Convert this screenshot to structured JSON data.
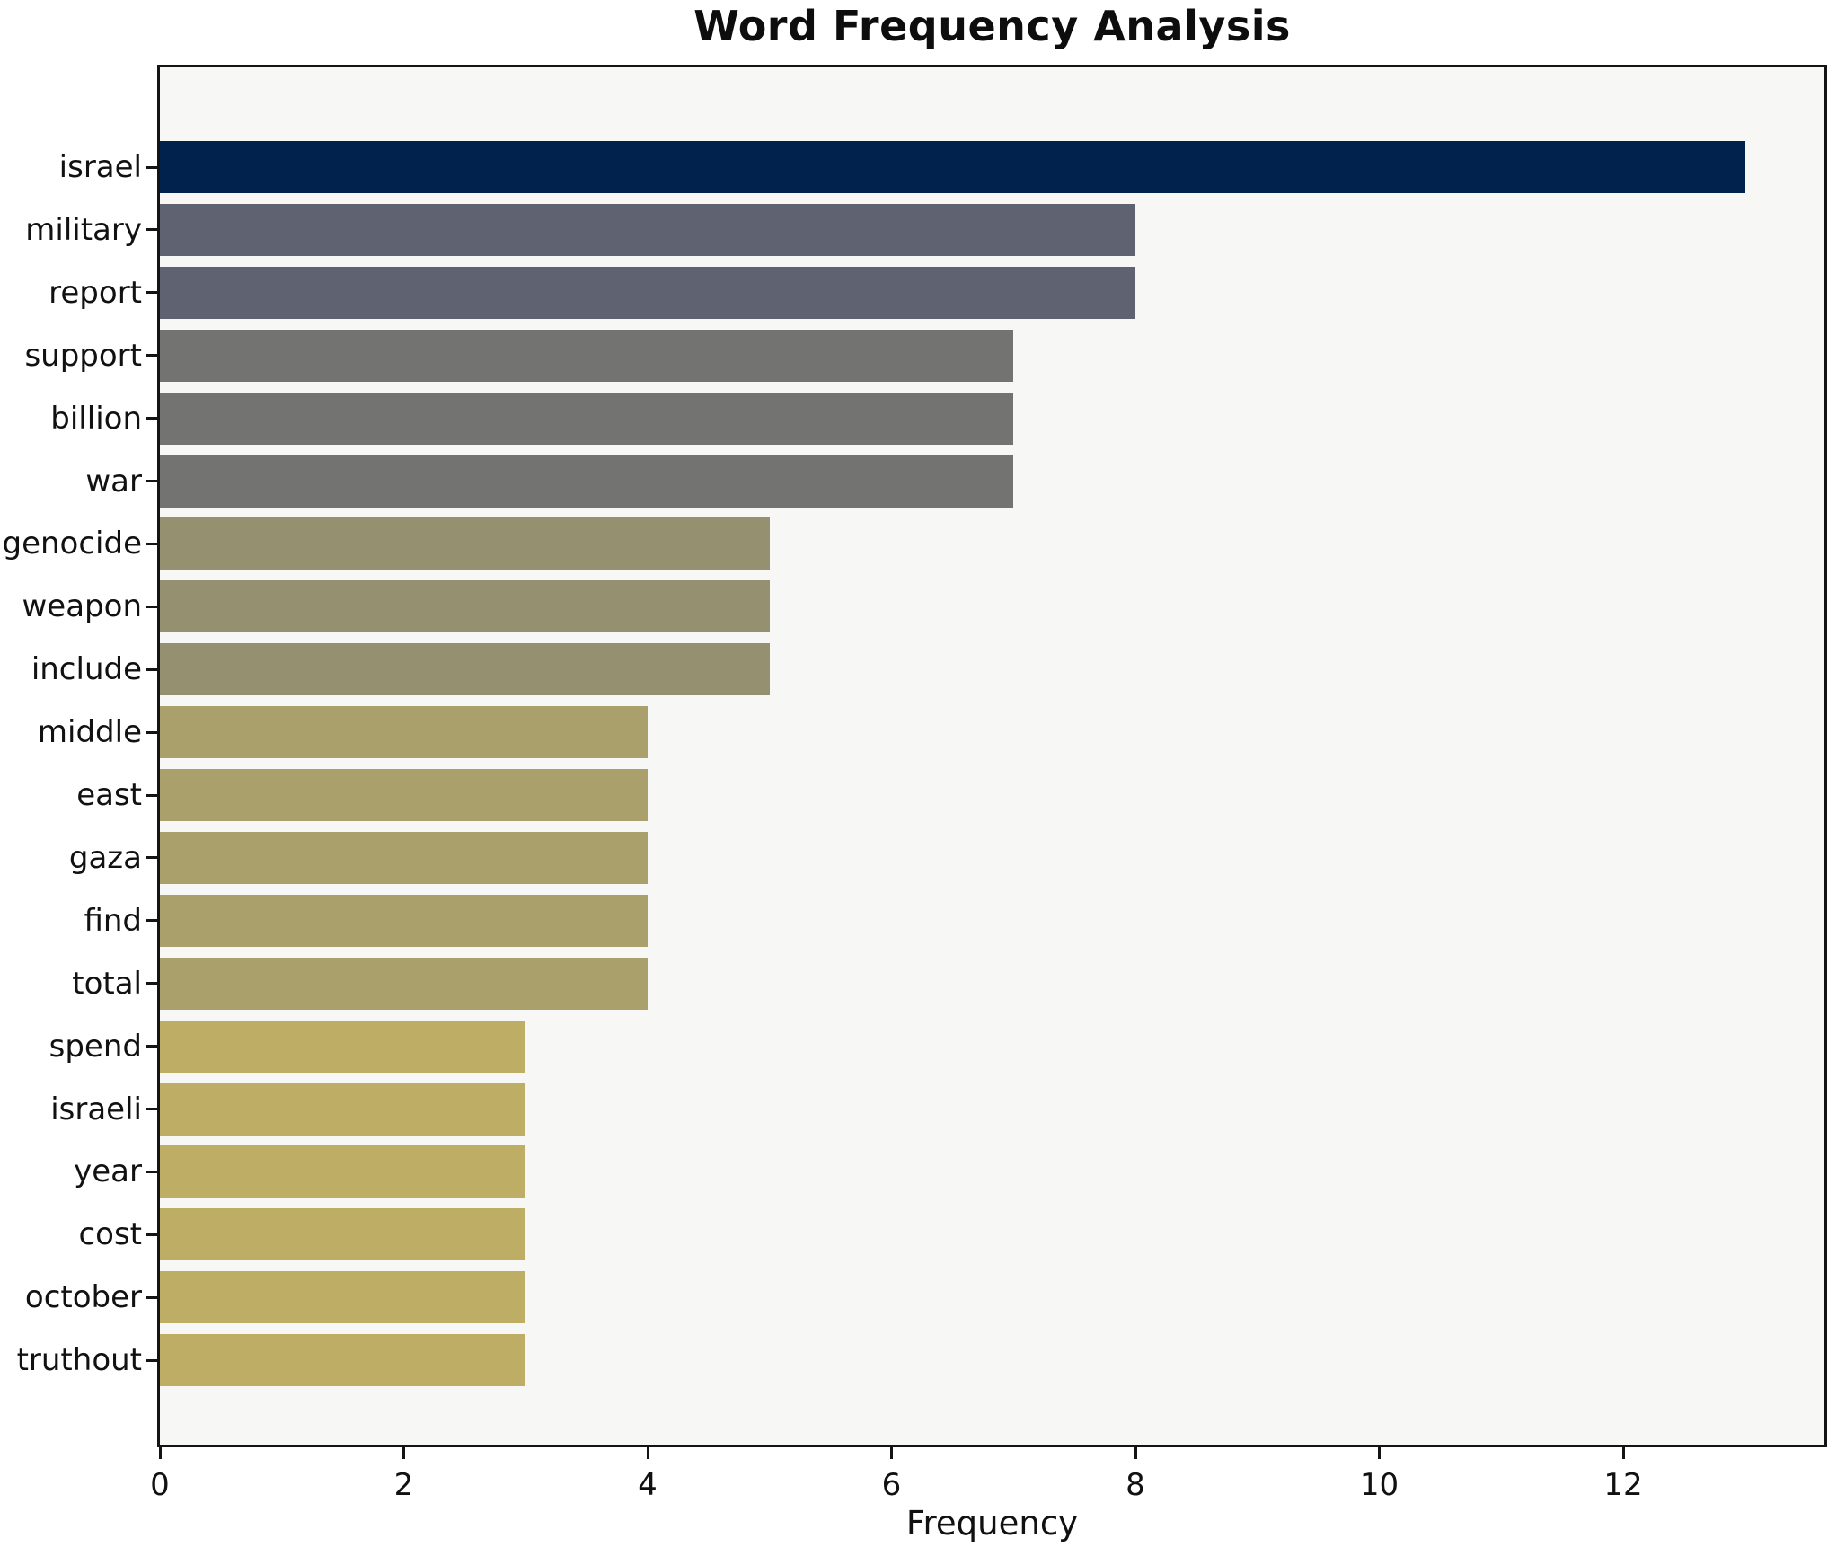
{
  "chart_data": {
    "type": "bar",
    "orientation": "horizontal",
    "title": "Word Frequency Analysis",
    "xlabel": "Frequency",
    "ylabel": "",
    "categories": [
      "israel",
      "military",
      "report",
      "support",
      "billion",
      "war",
      "genocide",
      "weapon",
      "include",
      "middle",
      "east",
      "gaza",
      "find",
      "total",
      "spend",
      "israeli",
      "year",
      "cost",
      "october",
      "truthout"
    ],
    "values": [
      13,
      8,
      8,
      7,
      7,
      7,
      5,
      5,
      5,
      4,
      4,
      4,
      4,
      4,
      3,
      3,
      3,
      3,
      3,
      3
    ],
    "bar_colors": [
      "#02224e",
      "#5f6270",
      "#5f6270",
      "#737372",
      "#737372",
      "#737372",
      "#959170",
      "#959170",
      "#959170",
      "#a9a06c",
      "#a9a06c",
      "#a9a06c",
      "#a9a06c",
      "#a9a06c",
      "#beae65",
      "#beae65",
      "#beae65",
      "#beae65",
      "#beae65",
      "#beae65"
    ],
    "xlim": [
      0,
      13.65
    ],
    "xticks": [
      0,
      2,
      4,
      6,
      8,
      10,
      12
    ],
    "grid": false,
    "legend": null,
    "colors": {
      "plot_background": "#f7f7f5",
      "figure_background": "#ffffff",
      "spine": "#141414",
      "text": "#111111"
    }
  }
}
